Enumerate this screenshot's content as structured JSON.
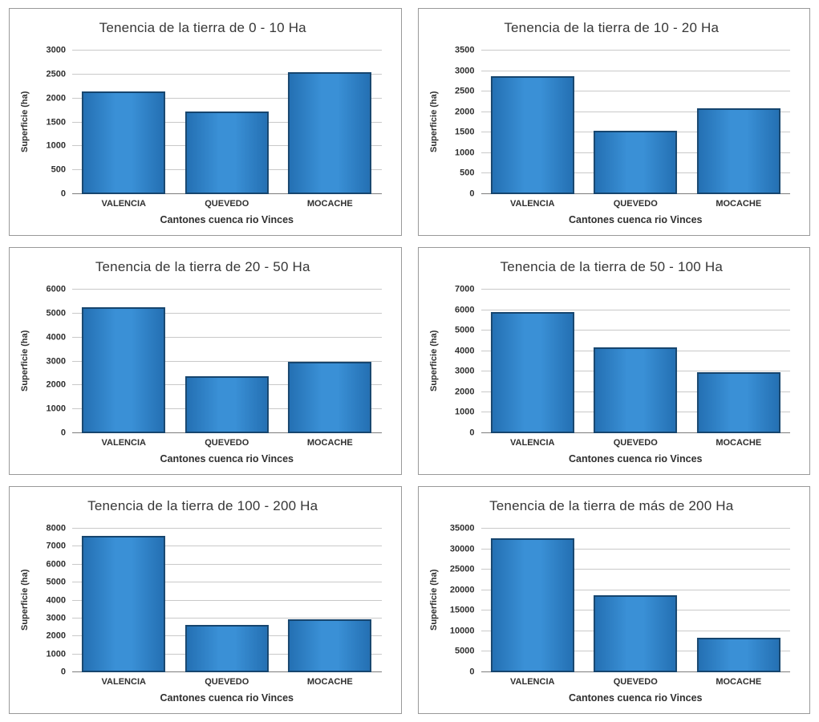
{
  "figure": {
    "background_color": "#ffffff",
    "panel_border_color": "#999999",
    "bar_fill_color": "#3a90d6",
    "bar_edge_color": "#16456e",
    "grid_color": "#c9c9c9",
    "axis_line_color": "#7d7d7d",
    "text_color": "#2f2f2f"
  },
  "chart_data": [
    {
      "type": "bar",
      "title": "Tenencia de la tierra de 0 - 10 Ha",
      "xlabel": "Cantones cuenca rio Vinces",
      "ylabel": "Superficie (ha)",
      "categories": [
        "VALENCIA",
        "QUEVEDO",
        "MOCACHE"
      ],
      "values": [
        2150,
        1730,
        2550
      ],
      "ylim": [
        0,
        3000
      ],
      "ytick_step": 500,
      "yticks": [
        "0",
        "500",
        "1000",
        "1500",
        "2000",
        "2500",
        "3000"
      ],
      "grid": true,
      "legend": false
    },
    {
      "type": "bar",
      "title": "Tenencia de la tierra de 10 - 20 Ha",
      "xlabel": "Cantones cuenca rio Vinces",
      "ylabel": "Superficie (ha)",
      "categories": [
        "VALENCIA",
        "QUEVEDO",
        "MOCACHE"
      ],
      "values": [
        2870,
        1550,
        2100
      ],
      "ylim": [
        0,
        3500
      ],
      "ytick_step": 500,
      "yticks": [
        "0",
        "500",
        "1000",
        "1500",
        "2000",
        "2500",
        "3000",
        "3500"
      ],
      "grid": true,
      "legend": false
    },
    {
      "type": "bar",
      "title": "Tenencia de la tierra de 20 - 50 Ha",
      "xlabel": "Cantones cuenca rio Vinces",
      "ylabel": "Superficie (ha)",
      "categories": [
        "VALENCIA",
        "QUEVEDO",
        "MOCACHE"
      ],
      "values": [
        5250,
        2380,
        2980
      ],
      "ylim": [
        0,
        6000
      ],
      "ytick_step": 1000,
      "yticks": [
        "0",
        "1000",
        "2000",
        "3000",
        "4000",
        "5000",
        "6000"
      ],
      "grid": true,
      "legend": false
    },
    {
      "type": "bar",
      "title": "Tenencia de la tierra de 50 - 100 Ha",
      "xlabel": "Cantones cuenca rio Vinces",
      "ylabel": "Superficie (ha)",
      "categories": [
        "VALENCIA",
        "QUEVEDO",
        "MOCACHE"
      ],
      "values": [
        5900,
        4200,
        2980
      ],
      "ylim": [
        0,
        7000
      ],
      "ytick_step": 1000,
      "yticks": [
        "0",
        "1000",
        "2000",
        "3000",
        "4000",
        "5000",
        "6000",
        "7000"
      ],
      "grid": true,
      "legend": false
    },
    {
      "type": "bar",
      "title": "Tenencia de la tierra de 100 - 200 Ha",
      "xlabel": "Cantones cuenca rio Vinces",
      "ylabel": "Superficie (ha)",
      "categories": [
        "VALENCIA",
        "QUEVEDO",
        "MOCACHE"
      ],
      "values": [
        7580,
        2650,
        2950
      ],
      "ylim": [
        0,
        8000
      ],
      "ytick_step": 1000,
      "yticks": [
        "0",
        "1000",
        "2000",
        "3000",
        "4000",
        "5000",
        "6000",
        "7000",
        "8000"
      ],
      "grid": true,
      "legend": false
    },
    {
      "type": "bar",
      "title": "Tenencia de la tierra de más de 200 Ha",
      "xlabel": "Cantones cuenca rio Vinces",
      "ylabel": "Superficie (ha)",
      "categories": [
        "VALENCIA",
        "QUEVEDO",
        "MOCACHE"
      ],
      "values": [
        32600,
        18700,
        8500
      ],
      "ylim": [
        0,
        35000
      ],
      "ytick_step": 5000,
      "yticks": [
        "0",
        "5000",
        "10000",
        "15000",
        "20000",
        "25000",
        "30000",
        "35000"
      ],
      "grid": true,
      "legend": false
    }
  ]
}
